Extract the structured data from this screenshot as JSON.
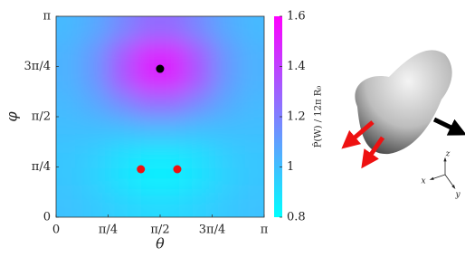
{
  "chart_data": {
    "type": "heatmap",
    "x_label": "θ",
    "y_label": "φ",
    "colorbar_label": "P̂(W) / 12π R₀",
    "xlim": [
      0,
      3.1416
    ],
    "ylim": [
      0,
      3.1416
    ],
    "xticks": [
      0,
      {
        "value": 0.7854,
        "label": "π/4"
      },
      {
        "value": 1.5708,
        "label": "π/2"
      },
      {
        "value": 2.3562,
        "label": "3π/4"
      },
      {
        "value": 3.1416,
        "label": "π"
      }
    ],
    "yticks": [
      0,
      {
        "value": 0.7854,
        "label": "π/4"
      },
      {
        "value": 1.5708,
        "label": "π/2"
      },
      {
        "value": 2.3562,
        "label": "3π/4"
      },
      {
        "value": 3.1416,
        "label": "π"
      }
    ],
    "zlim": [
      0.8,
      1.6
    ],
    "zticks": [
      0.8,
      1,
      1.2,
      1.4,
      1.6
    ],
    "colormap": [
      "#00ffff",
      "#ff00ff"
    ],
    "z": [
      [
        0.99,
        0.97,
        0.94,
        0.92,
        0.92,
        0.94,
        0.97,
        0.99
      ],
      [
        0.98,
        0.94,
        0.89,
        0.85,
        0.85,
        0.89,
        0.94,
        0.98
      ],
      [
        0.98,
        0.95,
        0.9,
        0.87,
        0.87,
        0.9,
        0.95,
        0.98
      ],
      [
        1.0,
        1.0,
        1.0,
        1.02,
        1.02,
        1.0,
        1.0,
        1.0
      ],
      [
        1.02,
        1.07,
        1.16,
        1.25,
        1.25,
        1.16,
        1.07,
        1.02
      ],
      [
        1.04,
        1.13,
        1.32,
        1.48,
        1.48,
        1.32,
        1.13,
        1.04
      ],
      [
        1.04,
        1.13,
        1.31,
        1.48,
        1.48,
        1.31,
        1.13,
        1.04
      ],
      [
        1.02,
        1.07,
        1.17,
        1.26,
        1.26,
        1.17,
        1.07,
        1.02
      ]
    ],
    "points": {
      "x": [
        1.57,
        1.28,
        1.83
      ],
      "y": [
        2.32,
        0.75,
        0.75
      ],
      "colors": [
        "#000000",
        "#ee1111",
        "#ee1111"
      ]
    },
    "inset_axes": [
      "x",
      "y",
      "z"
    ]
  }
}
